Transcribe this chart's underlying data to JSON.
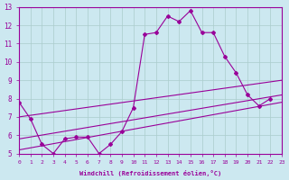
{
  "xlabel": "Windchill (Refroidissement éolien,°C)",
  "background_color": "#cce8f0",
  "line_color": "#990099",
  "grid_color": "#aacccc",
  "xlim": [
    0,
    23
  ],
  "ylim": [
    5,
    13
  ],
  "xticks": [
    0,
    1,
    2,
    3,
    4,
    5,
    6,
    7,
    8,
    9,
    10,
    11,
    12,
    13,
    14,
    15,
    16,
    17,
    18,
    19,
    20,
    21,
    22,
    23
  ],
  "yticks": [
    5,
    6,
    7,
    8,
    9,
    10,
    11,
    12,
    13
  ],
  "line1_x": [
    0,
    1,
    2,
    3,
    4,
    5,
    6,
    7,
    8,
    9,
    10,
    11,
    12,
    13,
    14,
    15,
    16,
    17,
    18,
    19,
    20,
    21,
    22
  ],
  "line1_y": [
    7.8,
    6.9,
    5.5,
    5.0,
    5.8,
    5.9,
    5.9,
    5.0,
    5.5,
    6.2,
    7.5,
    11.5,
    11.6,
    12.5,
    12.2,
    12.8,
    11.6,
    11.6,
    10.3,
    9.4,
    8.2,
    7.6,
    8.0
  ],
  "trend1_x": [
    0,
    23
  ],
  "trend1_y": [
    7.0,
    9.0
  ],
  "trend2_x": [
    0,
    23
  ],
  "trend2_y": [
    5.8,
    8.2
  ],
  "trend3_x": [
    0,
    23
  ],
  "trend3_y": [
    5.2,
    7.8
  ]
}
